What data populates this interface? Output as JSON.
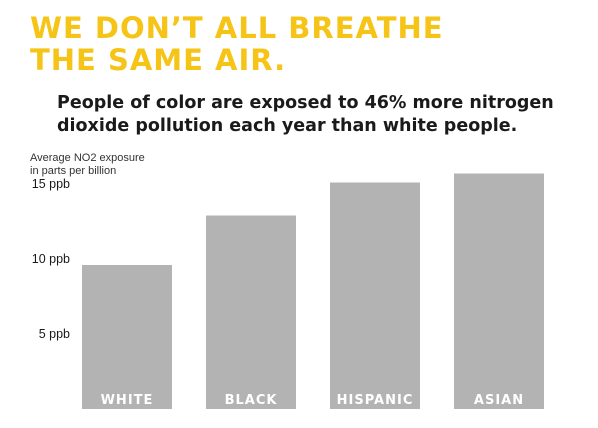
{
  "headline": {
    "line1": "WE DON’T ALL BREATHE",
    "line2": "THE SAME AIR."
  },
  "subhead": {
    "line1": "People of color are exposed to 46% more nitrogen",
    "line2": "dioxide pollution each year than white people."
  },
  "colors": {
    "headline": "#f6c417",
    "bar": "#b3b3b3",
    "bar_label": "#ffffff",
    "text": "#1a1a1a"
  },
  "chart_data": {
    "type": "bar",
    "title": "",
    "ylabel_lines": [
      "Average NO2 exposure",
      "in parts per billion"
    ],
    "xlabel": "",
    "categories": [
      "WHITE",
      "BLACK",
      "HISPANIC",
      "ASIAN"
    ],
    "values": [
      9.6,
      12.9,
      15.1,
      15.7
    ],
    "yticks": [
      {
        "value": 5,
        "label": "5 ppb"
      },
      {
        "value": 10,
        "label": "10 ppb"
      },
      {
        "value": 15,
        "label": "15 ppb"
      }
    ],
    "ylim": [
      0,
      16
    ],
    "grid": false,
    "legend": "none"
  }
}
